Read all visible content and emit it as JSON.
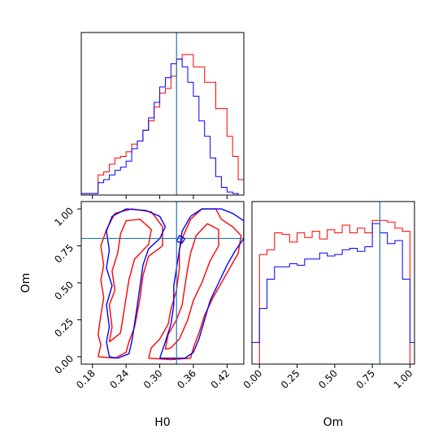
{
  "chart_data": [
    {
      "type": "histogram",
      "panel": "H0 marginal",
      "x_range": [
        0.16,
        0.45
      ],
      "truth": 0.33,
      "bin_edges": [
        0.16,
        0.17,
        0.18,
        0.19,
        0.2,
        0.21,
        0.22,
        0.23,
        0.24,
        0.25,
        0.26,
        0.27,
        0.28,
        0.29,
        0.3,
        0.31,
        0.32,
        0.33,
        0.34,
        0.35,
        0.36,
        0.37,
        0.38,
        0.39,
        0.4,
        0.41,
        0.42,
        0.43,
        0.44,
        0.45
      ],
      "series": [
        {
          "color": "#ff0000",
          "values": [
            0.01,
            0.01,
            0.01,
            0.13,
            0.15,
            0.2,
            0.24,
            0.25,
            0.28,
            0.33,
            0.35,
            0.42,
            0.48,
            0.57,
            0.66,
            0.69,
            0.77,
            0.88,
            0.91,
            0.91,
            0.83,
            0.83,
            0.73,
            0.73,
            0.56,
            0.56,
            0.38,
            0.25,
            0.1
          ]
        },
        {
          "color": "#0000ff",
          "values": [
            0.01,
            0.01,
            0.01,
            0.08,
            0.1,
            0.13,
            0.16,
            0.18,
            0.22,
            0.3,
            0.35,
            0.42,
            0.5,
            0.6,
            0.7,
            0.76,
            0.85,
            0.88,
            0.83,
            0.73,
            0.64,
            0.48,
            0.38,
            0.24,
            0.12,
            0.05,
            0.02,
            0.01,
            0.0
          ]
        }
      ]
    },
    {
      "type": "contour",
      "panel": "H0 vs Om",
      "xlabel": "H0",
      "ylabel": "Om",
      "xlim": [
        0.16,
        0.45
      ],
      "ylim": [
        -0.05,
        1.05
      ],
      "xticks": [
        "0.18",
        "0.24",
        "0.30",
        "0.36",
        "0.42"
      ],
      "yticks": [
        "0.00",
        "0.25",
        "0.50",
        "0.75",
        "1.00"
      ],
      "truth": {
        "x": 0.33,
        "y": 0.8
      },
      "series": [
        {
          "color": "#ff0000",
          "contours": [
            [
              [
                0.19,
                0.0
              ],
              [
                0.195,
                0.08
              ],
              [
                0.19,
                0.15
              ],
              [
                0.195,
                0.28
              ],
              [
                0.2,
                0.4
              ],
              [
                0.195,
                0.52
              ],
              [
                0.2,
                0.62
              ],
              [
                0.195,
                0.75
              ],
              [
                0.205,
                0.86
              ],
              [
                0.22,
                0.97
              ],
              [
                0.25,
                1.0
              ],
              [
                0.285,
                0.98
              ],
              [
                0.305,
                0.88
              ],
              [
                0.305,
                0.75
              ],
              [
                0.28,
                0.68
              ],
              [
                0.27,
                0.55
              ],
              [
                0.265,
                0.4
              ],
              [
                0.26,
                0.3
              ],
              [
                0.255,
                0.2
              ],
              [
                0.245,
                0.1
              ],
              [
                0.24,
                0.03
              ],
              [
                0.22,
                -0.01
              ],
              [
                0.19,
                0.0
              ]
            ],
            [
              [
                0.21,
                0.1
              ],
              [
                0.215,
                0.2
              ],
              [
                0.21,
                0.35
              ],
              [
                0.22,
                0.45
              ],
              [
                0.215,
                0.58
              ],
              [
                0.225,
                0.7
              ],
              [
                0.23,
                0.83
              ],
              [
                0.24,
                0.92
              ],
              [
                0.265,
                0.93
              ],
              [
                0.285,
                0.86
              ],
              [
                0.28,
                0.76
              ],
              [
                0.255,
                0.66
              ],
              [
                0.245,
                0.52
              ],
              [
                0.24,
                0.4
              ],
              [
                0.235,
                0.28
              ],
              [
                0.23,
                0.16
              ],
              [
                0.21,
                0.1
              ]
            ],
            [
              [
                0.28,
                -0.01
              ],
              [
                0.285,
                0.06
              ],
              [
                0.3,
                0.12
              ],
              [
                0.315,
                0.22
              ],
              [
                0.32,
                0.32
              ],
              [
                0.33,
                0.45
              ],
              [
                0.335,
                0.6
              ],
              [
                0.335,
                0.72
              ],
              [
                0.34,
                0.8
              ],
              [
                0.355,
                0.93
              ],
              [
                0.375,
                1.0
              ],
              [
                0.4,
                1.0
              ],
              [
                0.41,
                0.93
              ],
              [
                0.43,
                0.88
              ],
              [
                0.445,
                0.82
              ],
              [
                0.44,
                0.7
              ],
              [
                0.425,
                0.6
              ],
              [
                0.41,
                0.5
              ],
              [
                0.395,
                0.4
              ],
              [
                0.38,
                0.28
              ],
              [
                0.37,
                0.16
              ],
              [
                0.36,
                0.06
              ],
              [
                0.355,
                -0.01
              ],
              [
                0.32,
                -0.02
              ],
              [
                0.28,
                -0.01
              ]
            ],
            [
              [
                0.31,
                0.05
              ],
              [
                0.315,
                0.15
              ],
              [
                0.33,
                0.25
              ],
              [
                0.34,
                0.35
              ],
              [
                0.345,
                0.48
              ],
              [
                0.35,
                0.6
              ],
              [
                0.355,
                0.7
              ],
              [
                0.365,
                0.82
              ],
              [
                0.385,
                0.9
              ],
              [
                0.405,
                0.86
              ],
              [
                0.405,
                0.75
              ],
              [
                0.39,
                0.65
              ],
              [
                0.375,
                0.5
              ],
              [
                0.36,
                0.38
              ],
              [
                0.35,
                0.25
              ],
              [
                0.335,
                0.12
              ],
              [
                0.32,
                0.06
              ],
              [
                0.31,
                0.05
              ]
            ]
          ]
        },
        {
          "color": "#0000ff",
          "contours": [
            [
              [
                0.21,
                0.0
              ],
              [
                0.205,
                0.1
              ],
              [
                0.21,
                0.2
              ],
              [
                0.205,
                0.35
              ],
              [
                0.215,
                0.48
              ],
              [
                0.205,
                0.6
              ],
              [
                0.21,
                0.72
              ],
              [
                0.205,
                0.85
              ],
              [
                0.215,
                0.95
              ],
              [
                0.24,
                1.0
              ],
              [
                0.275,
                0.99
              ],
              [
                0.3,
                0.95
              ],
              [
                0.31,
                0.88
              ],
              [
                0.3,
                0.8
              ],
              [
                0.28,
                0.73
              ],
              [
                0.27,
                0.62
              ],
              [
                0.265,
                0.48
              ],
              [
                0.26,
                0.35
              ],
              [
                0.255,
                0.22
              ],
              [
                0.25,
                0.1
              ],
              [
                0.245,
                0.02
              ],
              [
                0.225,
                -0.01
              ],
              [
                0.21,
                0.0
              ]
            ],
            [
              [
                0.3,
                -0.01
              ],
              [
                0.31,
                0.1
              ],
              [
                0.32,
                0.22
              ],
              [
                0.325,
                0.35
              ],
              [
                0.325,
                0.48
              ],
              [
                0.33,
                0.6
              ],
              [
                0.335,
                0.72
              ],
              [
                0.34,
                0.85
              ],
              [
                0.355,
                0.95
              ],
              [
                0.375,
                1.0
              ],
              [
                0.41,
                1.0
              ],
              [
                0.43,
                0.97
              ],
              [
                0.45,
                0.92
              ],
              [
                0.45,
                0.8
              ],
              [
                0.435,
                0.72
              ],
              [
                0.42,
                0.62
              ],
              [
                0.405,
                0.5
              ],
              [
                0.39,
                0.38
              ],
              [
                0.38,
                0.25
              ],
              [
                0.37,
                0.12
              ],
              [
                0.36,
                0.03
              ],
              [
                0.345,
                -0.01
              ],
              [
                0.3,
                -0.01
              ]
            ],
            [
              [
                0.33,
                0.78
              ],
              [
                0.335,
                0.82
              ],
              [
                0.345,
                0.8
              ],
              [
                0.34,
                0.77
              ],
              [
                0.33,
                0.78
              ]
            ]
          ]
        }
      ]
    },
    {
      "type": "histogram",
      "panel": "Om marginal",
      "xlabel": "Om",
      "x_range": [
        -0.05,
        1.03
      ],
      "xticks": [
        "0.00",
        "0.25",
        "0.50",
        "0.75",
        "1.00"
      ],
      "truth": 0.8,
      "bin_edges": [
        -0.05,
        0.0,
        0.05,
        0.1,
        0.15,
        0.2,
        0.25,
        0.3,
        0.35,
        0.4,
        0.45,
        0.5,
        0.55,
        0.6,
        0.65,
        0.7,
        0.75,
        0.8,
        0.85,
        0.9,
        0.95,
        1.0,
        1.03
      ],
      "series": [
        {
          "color": "#ff0000",
          "values": [
            0.0,
            0.71,
            0.74,
            0.85,
            0.84,
            0.79,
            0.85,
            0.82,
            0.86,
            0.81,
            0.87,
            0.85,
            0.9,
            0.85,
            0.88,
            0.85,
            0.93,
            0.93,
            0.92,
            0.88,
            0.86,
            0.0
          ]
        },
        {
          "color": "#0000ff",
          "values": [
            0.14,
            0.36,
            0.55,
            0.63,
            0.63,
            0.65,
            0.64,
            0.68,
            0.68,
            0.72,
            0.7,
            0.71,
            0.74,
            0.75,
            0.73,
            0.76,
            0.91,
            0.85,
            0.78,
            0.8,
            0.55,
            0.14
          ]
        }
      ]
    }
  ],
  "style": {
    "truth_color": "#1f77b4"
  }
}
